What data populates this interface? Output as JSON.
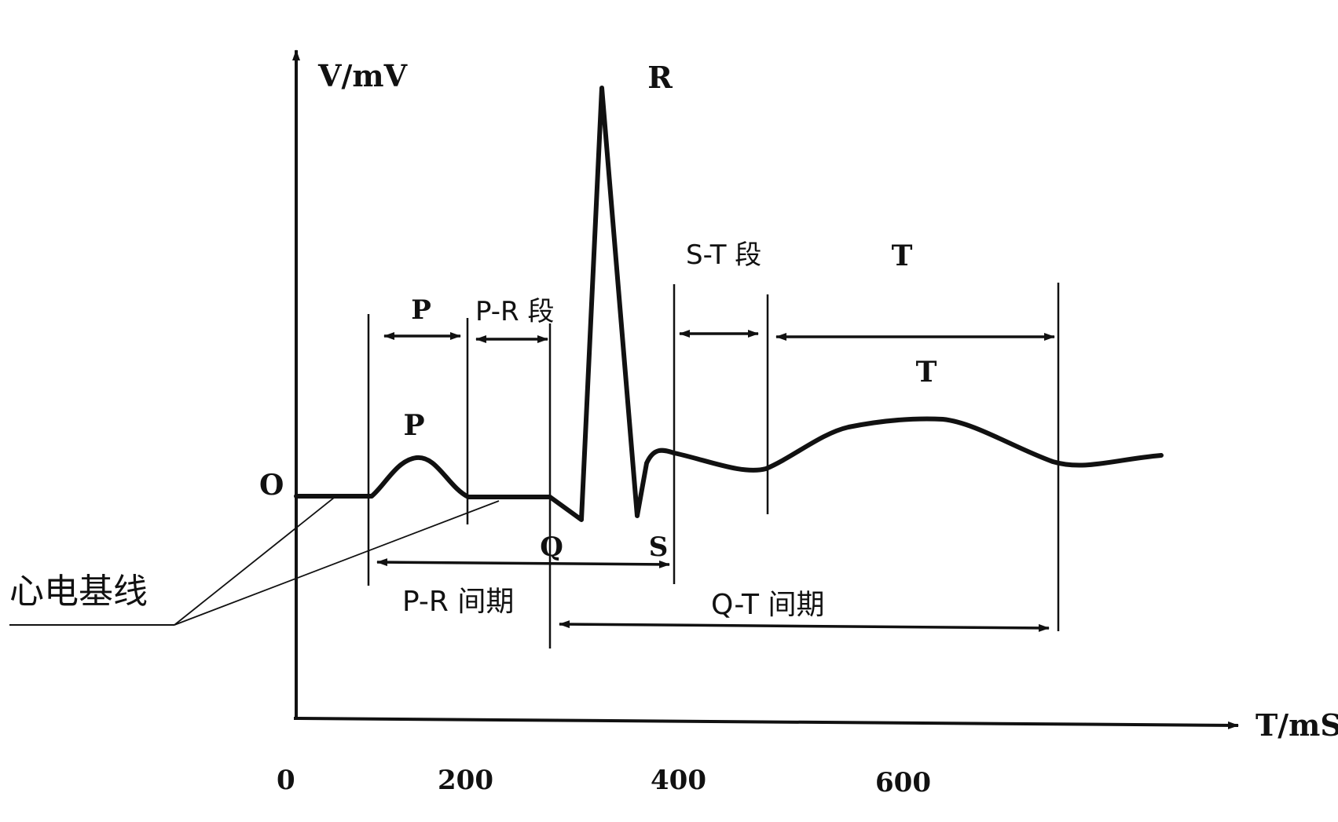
{
  "axes": {
    "y_label": "V/mV",
    "x_label": "T/mS",
    "y_zero_label": "O",
    "x_ticks": [
      "0",
      "200",
      "400",
      "600"
    ]
  },
  "waves": {
    "p": "P",
    "q": "Q",
    "r": "R",
    "s": "S",
    "t": "T"
  },
  "intervals": {
    "p_wave": "P",
    "pr_segment": "P-R 段",
    "st_segment": "S-T 段",
    "t_wave": "T",
    "pr_interval": "P-R 间期",
    "qt_interval": "Q-T 间期"
  },
  "callout": {
    "baseline": "心电基线"
  },
  "colors": {
    "ink": "#111111",
    "background": "#ffffff"
  }
}
